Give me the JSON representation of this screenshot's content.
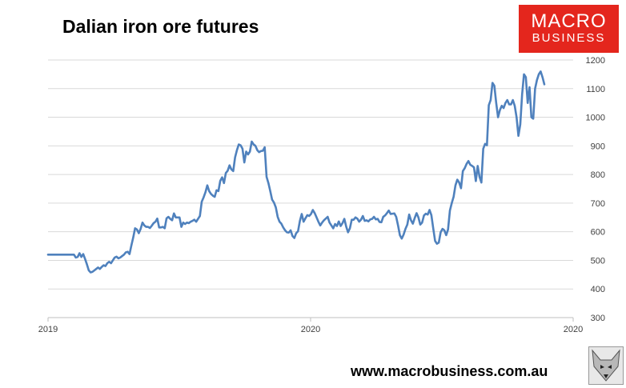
{
  "chart_data": {
    "type": "line",
    "title": "Dalian iron ore futures",
    "xlabel": "",
    "ylabel": "",
    "ylim": [
      300,
      1200
    ],
    "y_ticks": [
      300,
      400,
      500,
      600,
      700,
      800,
      900,
      1000,
      1100,
      1200
    ],
    "x_ticks": [
      "2019",
      "2020",
      "2020"
    ],
    "y_axis_side": "right",
    "grid": true,
    "legend": "none",
    "line_color": "#4f81bd",
    "series": [
      {
        "values": [
          520,
          520,
          520,
          520,
          520,
          520,
          520,
          520,
          520,
          520,
          520,
          520,
          520,
          520,
          520,
          510,
          512,
          525,
          512,
          522,
          505,
          486,
          465,
          458,
          460,
          465,
          470,
          475,
          470,
          477,
          483,
          480,
          490,
          495,
          490,
          500,
          510,
          513,
          507,
          510,
          515,
          520,
          528,
          530,
          522,
          552,
          580,
          612,
          608,
          595,
          610,
          632,
          622,
          617,
          617,
          613,
          621,
          630,
          635,
          646,
          615,
          615,
          617,
          612,
          647,
          652,
          645,
          640,
          664,
          650,
          650,
          650,
          617,
          632,
          627,
          632,
          630,
          635,
          638,
          642,
          635,
          645,
          655,
          705,
          720,
          738,
          762,
          742,
          732,
          726,
          722,
          745,
          742,
          778,
          790,
          770,
          805,
          813,
          832,
          818,
          812,
          860,
          885,
          905,
          902,
          890,
          842,
          880,
          870,
          880,
          915,
          905,
          900,
          885,
          878,
          882,
          883,
          895,
          792,
          770,
          742,
          712,
          702,
          685,
          652,
          635,
          628,
          615,
          605,
          598,
          597,
          605,
          585,
          578,
          595,
          602,
          638,
          662,
          635,
          647,
          658,
          655,
          662,
          676,
          665,
          650,
          635,
          622,
          632,
          640,
          646,
          652,
          632,
          622,
          612,
          627,
          620,
          636,
          620,
          630,
          645,
          618,
          598,
          612,
          642,
          642,
          650,
          646,
          635,
          642,
          655,
          638,
          640,
          636,
          643,
          645,
          652,
          643,
          645,
          634,
          633,
          652,
          657,
          665,
          674,
          662,
          663,
          664,
          652,
          622,
          588,
          576,
          590,
          610,
          625,
          660,
          640,
          628,
          648,
          665,
          650,
          625,
          632,
          657,
          663,
          660,
          676,
          658,
          612,
          568,
          558,
          562,
          598,
          610,
          605,
          588,
          608,
          674,
          700,
          722,
          762,
          782,
          772,
          752,
          812,
          822,
          837,
          847,
          834,
          830,
          825,
          777,
          830,
          792,
          772,
          890,
          907,
          902,
          1042,
          1060,
          1120,
          1110,
          1050,
          1000,
          1025,
          1040,
          1032,
          1050,
          1060,
          1045,
          1045,
          1060,
          1040,
          1000,
          935,
          975,
          1080,
          1150,
          1140,
          1050,
          1105,
          1000,
          995,
          1100,
          1130,
          1150,
          1160,
          1140,
          1115
        ]
      }
    ]
  },
  "footer": {
    "url": "www.macrobusiness.com.au"
  },
  "logo": {
    "line1": "MACRO",
    "line2": "BUSINESS"
  }
}
